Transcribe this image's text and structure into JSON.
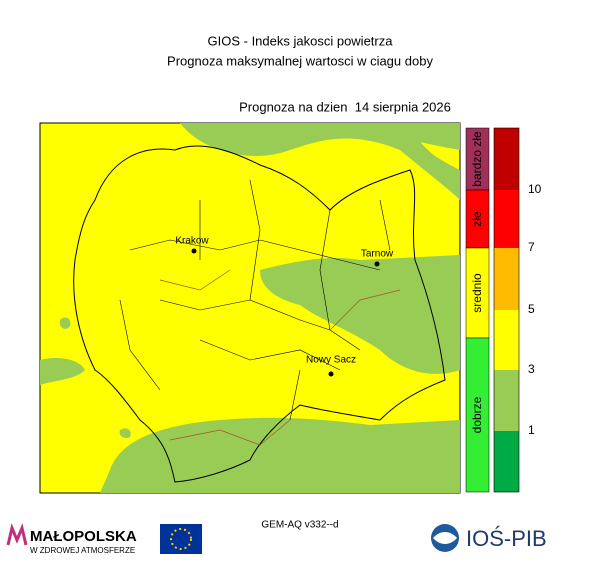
{
  "header": {
    "title": "GIOS - Indeks jakosci powietrza",
    "subtitle": "Prognoza maksymalnej wartosci w ciagu doby",
    "forecast_date": "Prognoza na dzien  14 sierpnia 2026"
  },
  "map": {
    "cities": [
      "Krakow",
      "Tarnow",
      "Nowy Sacz"
    ]
  },
  "legend": {
    "categories": [
      "bardzo złe",
      "złe",
      "srednio",
      "dobrze"
    ],
    "ticks": [
      "10",
      "7",
      "5",
      "3",
      "1"
    ]
  },
  "footer": {
    "model": "GEM-AQ v332--d",
    "logo_left": "MAŁOPOLSKA",
    "logo_left_tagline": "W ZDROWEJ ATMOSFERZE",
    "logo_right": "IOŚ-PIB"
  }
}
